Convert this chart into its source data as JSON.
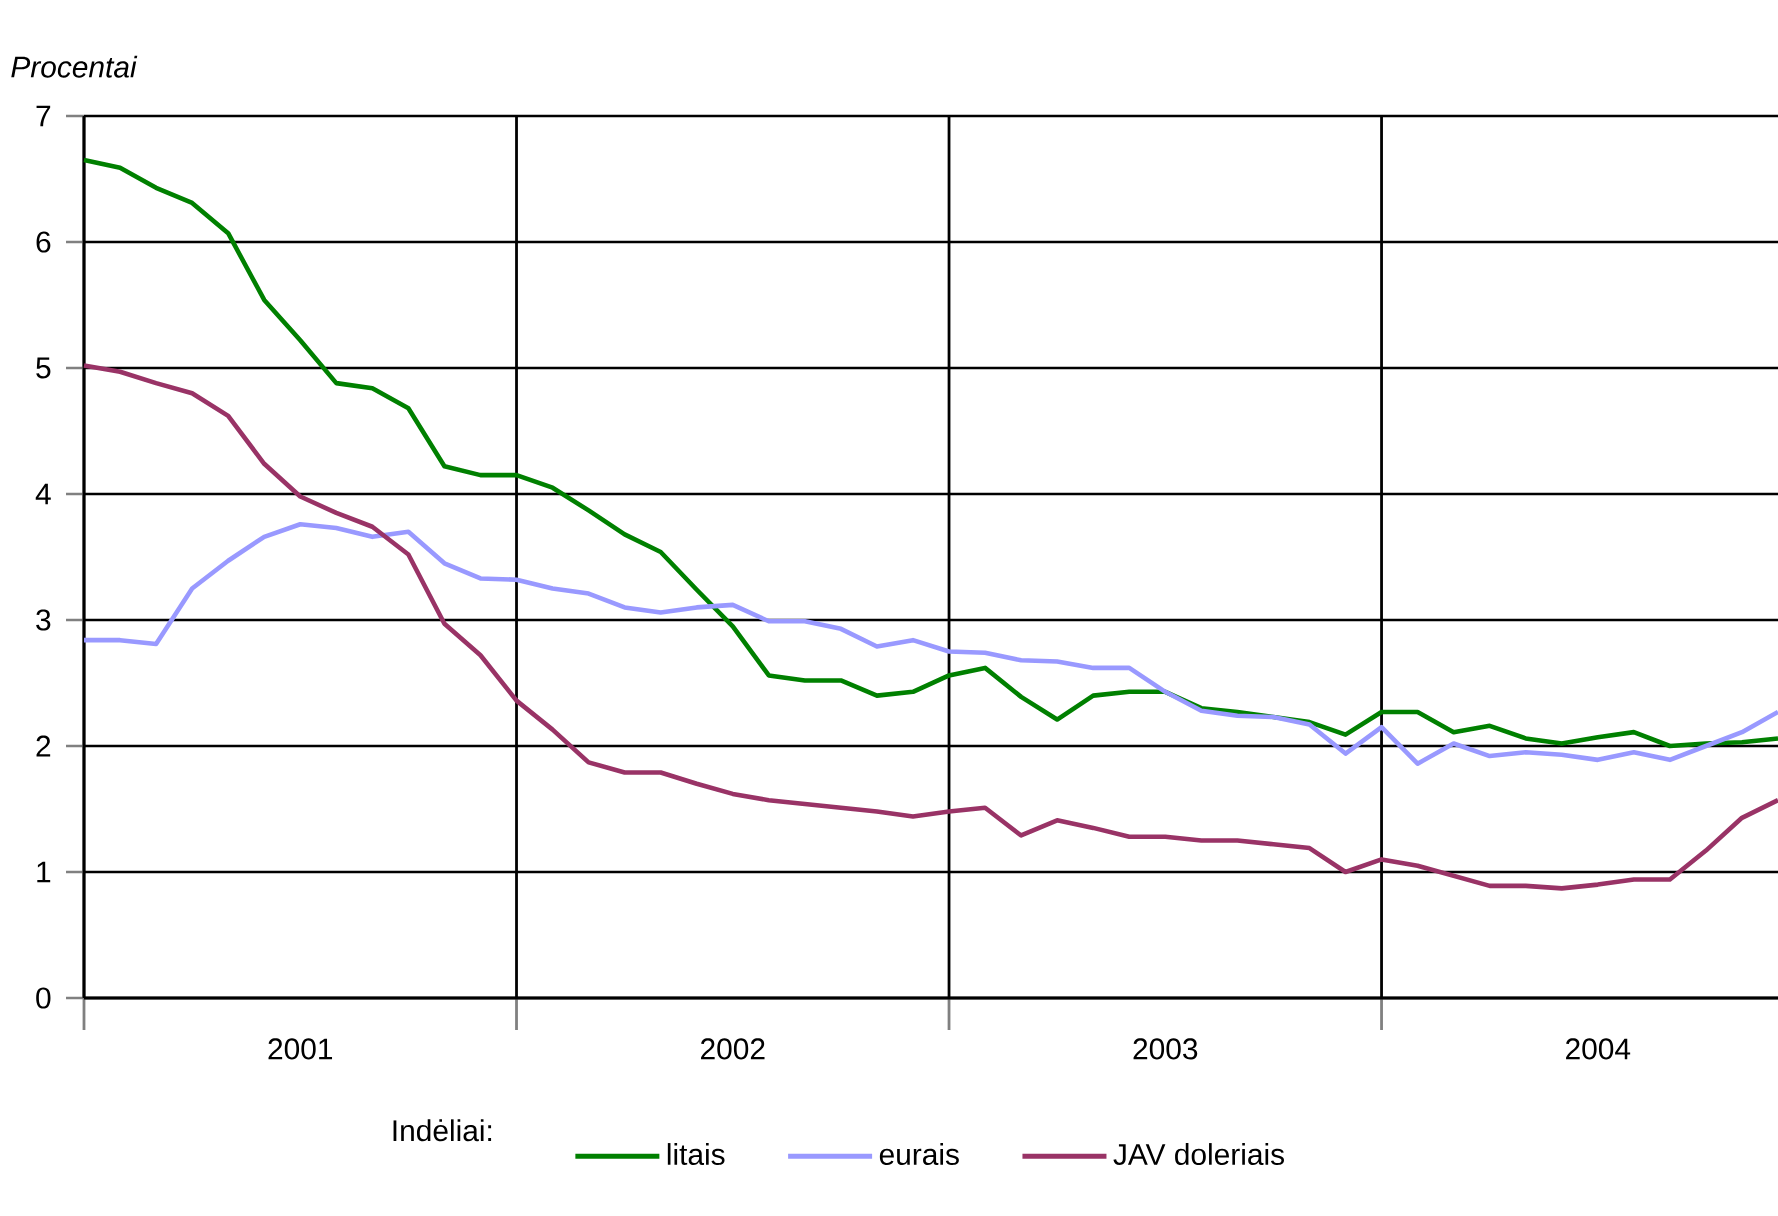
{
  "chart_data": {
    "type": "line",
    "ylabel": "Procentai",
    "legend_title": "Indėliai:",
    "x": [
      "2001-01",
      "2001-02",
      "2001-03",
      "2001-04",
      "2001-05",
      "2001-06",
      "2001-07",
      "2001-08",
      "2001-09",
      "2001-10",
      "2001-11",
      "2001-12",
      "2002-01",
      "2002-02",
      "2002-03",
      "2002-04",
      "2002-05",
      "2002-06",
      "2002-07",
      "2002-08",
      "2002-09",
      "2002-10",
      "2002-11",
      "2002-12",
      "2003-01",
      "2003-02",
      "2003-03",
      "2003-04",
      "2003-05",
      "2003-06",
      "2003-07",
      "2003-08",
      "2003-09",
      "2003-10",
      "2003-11",
      "2003-12",
      "2004-01",
      "2004-02",
      "2004-03",
      "2004-04",
      "2004-05",
      "2004-06",
      "2004-07",
      "2004-08",
      "2004-09",
      "2004-10",
      "2004-11",
      "2004-12"
    ],
    "xlim": [
      "2001-01",
      "2004-12"
    ],
    "xticks": [
      {
        "value": "2001-01",
        "label": null
      },
      {
        "value": "2001-07",
        "label": "2001"
      },
      {
        "value": "2002-01",
        "label": null
      },
      {
        "value": "2002-07",
        "label": "2002"
      },
      {
        "value": "2003-01",
        "label": null
      },
      {
        "value": "2003-07",
        "label": "2003"
      },
      {
        "value": "2004-01",
        "label": null
      },
      {
        "value": "2004-07",
        "label": "2004"
      }
    ],
    "ylim": [
      0,
      7
    ],
    "yticks": [
      0,
      1,
      2,
      3,
      4,
      5,
      6,
      7
    ],
    "grid": true,
    "legend": "bottom",
    "series": [
      {
        "name": "litais",
        "color": "#008000",
        "values": [
          6.65,
          6.59,
          6.43,
          6.31,
          6.07,
          5.54,
          5.22,
          4.88,
          4.84,
          4.68,
          4.22,
          4.15,
          4.15,
          4.05,
          3.87,
          3.68,
          3.54,
          3.24,
          2.95,
          2.56,
          2.52,
          2.52,
          2.4,
          2.43,
          2.56,
          2.62,
          2.39,
          2.21,
          2.4,
          2.43,
          2.43,
          2.3,
          2.27,
          2.23,
          2.19,
          2.09,
          2.27,
          2.27,
          2.11,
          2.16,
          2.06,
          2.02,
          2.07,
          2.11,
          2.0,
          2.02,
          2.03,
          2.06
        ]
      },
      {
        "name": "eurais",
        "color": "#9999ff",
        "values": [
          2.84,
          2.84,
          2.81,
          3.25,
          3.47,
          3.66,
          3.76,
          3.73,
          3.66,
          3.7,
          3.45,
          3.33,
          3.32,
          3.25,
          3.21,
          3.1,
          3.06,
          3.1,
          3.12,
          2.99,
          2.99,
          2.93,
          2.79,
          2.84,
          2.75,
          2.74,
          2.68,
          2.67,
          2.62,
          2.62,
          2.43,
          2.28,
          2.24,
          2.23,
          2.17,
          1.94,
          2.15,
          1.86,
          2.02,
          1.92,
          1.95,
          1.93,
          1.89,
          1.95,
          1.89,
          2.0,
          2.11,
          2.27
        ]
      },
      {
        "name": "JAV doleriais",
        "color": "#993366",
        "values": [
          5.02,
          4.97,
          4.88,
          4.8,
          4.62,
          4.24,
          3.98,
          3.85,
          3.74,
          3.52,
          2.97,
          2.72,
          2.36,
          2.13,
          1.87,
          1.79,
          1.79,
          1.7,
          1.62,
          1.57,
          1.54,
          1.51,
          1.48,
          1.44,
          1.48,
          1.51,
          1.29,
          1.41,
          1.35,
          1.28,
          1.28,
          1.25,
          1.25,
          1.22,
          1.19,
          1.0,
          1.1,
          1.05,
          0.97,
          0.89,
          0.89,
          0.87,
          0.9,
          0.94,
          0.94,
          1.17,
          1.43,
          1.57
        ]
      }
    ]
  }
}
